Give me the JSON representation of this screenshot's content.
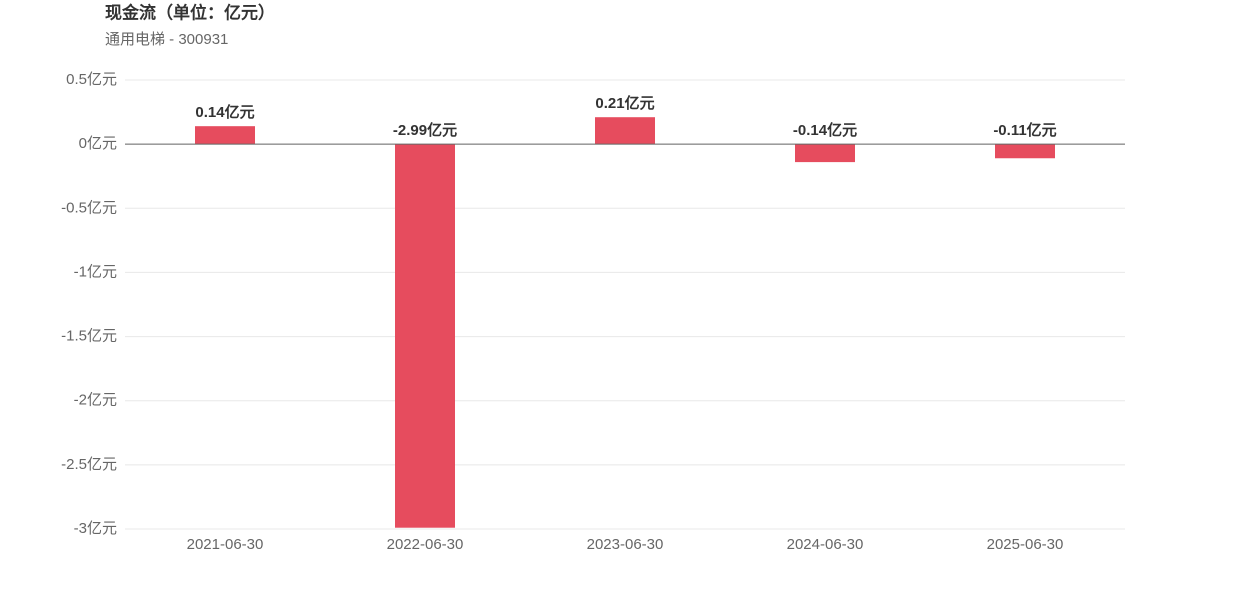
{
  "chart_data": {
    "type": "bar",
    "title": "现金流（单位：亿元）",
    "subtitle": "通用电梯 - 300931",
    "categories": [
      "2021-06-30",
      "2022-06-30",
      "2023-06-30",
      "2024-06-30",
      "2025-06-30"
    ],
    "values": [
      0.14,
      -2.99,
      0.21,
      -0.14,
      -0.11
    ],
    "value_labels": [
      "0.14亿元",
      "-2.99亿元",
      "0.21亿元",
      "-0.14亿元",
      "-0.11亿元"
    ],
    "color": "#e64c5e",
    "ylim": [
      -3,
      0.5
    ],
    "yticks": [
      {
        "value": 0.5,
        "label": "0.5亿元"
      },
      {
        "value": 0,
        "label": "0亿元"
      },
      {
        "value": -0.5,
        "label": "-0.5亿元"
      },
      {
        "value": -1,
        "label": "-1亿元"
      },
      {
        "value": -1.5,
        "label": "-1.5亿元"
      },
      {
        "value": -2,
        "label": "-2亿元"
      },
      {
        "value": -2.5,
        "label": "-2.5亿元"
      },
      {
        "value": -3,
        "label": "-3亿元"
      }
    ],
    "grid": true
  }
}
